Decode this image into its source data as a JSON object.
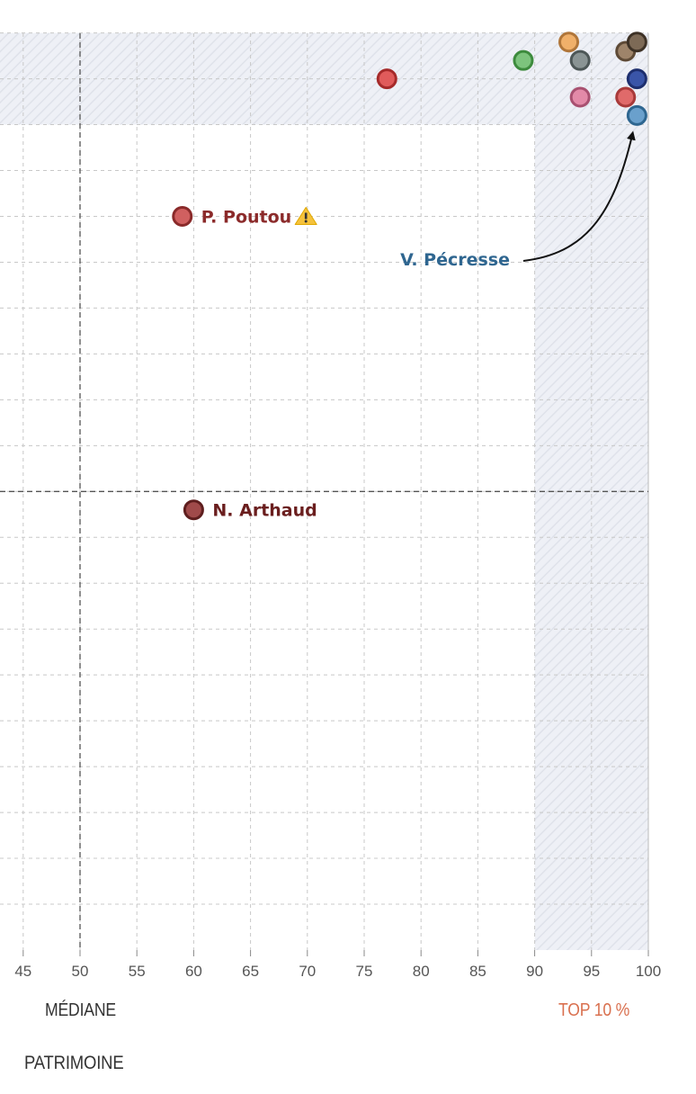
{
  "chart_data": {
    "type": "scatter",
    "title": "",
    "xlabel": "PATRIMOINE",
    "ylabel": "",
    "xlim": [
      44,
      100
    ],
    "xticks": [
      "45",
      "50",
      "55",
      "60",
      "65",
      "70",
      "75",
      "80",
      "85",
      "90",
      "95",
      "100"
    ],
    "ylim": [
      0,
      20.5
    ],
    "grid": true,
    "reference_lines": [
      {
        "axis": "x",
        "value": 50,
        "label": "MÉDIANE"
      },
      {
        "axis": "y",
        "value": 10
      }
    ],
    "shaded_regions": [
      {
        "axis": "x",
        "from": 90,
        "to": 100,
        "label": "TOP 10 %"
      },
      {
        "axis": "y",
        "from": 18,
        "to": 20
      }
    ],
    "series": [
      {
        "x": 77,
        "y": 19,
        "color": "#e05b5b",
        "stroke": "#a52a2a"
      },
      {
        "x": 89,
        "y": 19.4,
        "color": "#7dc47d",
        "stroke": "#3d8b3d"
      },
      {
        "x": 93,
        "y": 19.8,
        "color": "#f0b06a",
        "stroke": "#b0763a"
      },
      {
        "x": 94,
        "y": 19.4,
        "color": "#8a9494",
        "stroke": "#4d5757"
      },
      {
        "x": 98,
        "y": 19.6,
        "color": "#9e846a",
        "stroke": "#5e4a36"
      },
      {
        "x": 99,
        "y": 19.8,
        "color": "#7d6a56",
        "stroke": "#3e3226"
      },
      {
        "x": 99,
        "y": 19.0,
        "color": "#3a55a8",
        "stroke": "#1e2f6e"
      },
      {
        "x": 94,
        "y": 18.6,
        "color": "#e38aa8",
        "stroke": "#a85070"
      },
      {
        "x": 98,
        "y": 18.6,
        "color": "#e06a6a",
        "stroke": "#a83a3a"
      },
      {
        "x": 99,
        "y": 18.2,
        "color": "#6aa0cc",
        "stroke": "#2e6690",
        "label": "V. Pécresse",
        "label_color": "#2f6690"
      },
      {
        "x": 59,
        "y": 16,
        "color": "#d06060",
        "stroke": "#8a2a2a",
        "label": "P. Poutou",
        "label_color": "#8b2a2a",
        "warning": true
      },
      {
        "x": 60,
        "y": 9.6,
        "color": "#a04a4a",
        "stroke": "#5e1e1e",
        "label": "N. Arthaud",
        "label_color": "#6a1e1e"
      }
    ]
  },
  "labels": {
    "mediane": "MÉDIANE",
    "top10": "TOP 10 %",
    "patrimoine": "PATRIMOINE"
  },
  "colors": {
    "grid": "#c8c8c8",
    "shade": "#eef0f6",
    "hatch": "#dfe2ea",
    "refline": "#555555",
    "top10": "#d9704f",
    "axis_text": "#555555"
  }
}
